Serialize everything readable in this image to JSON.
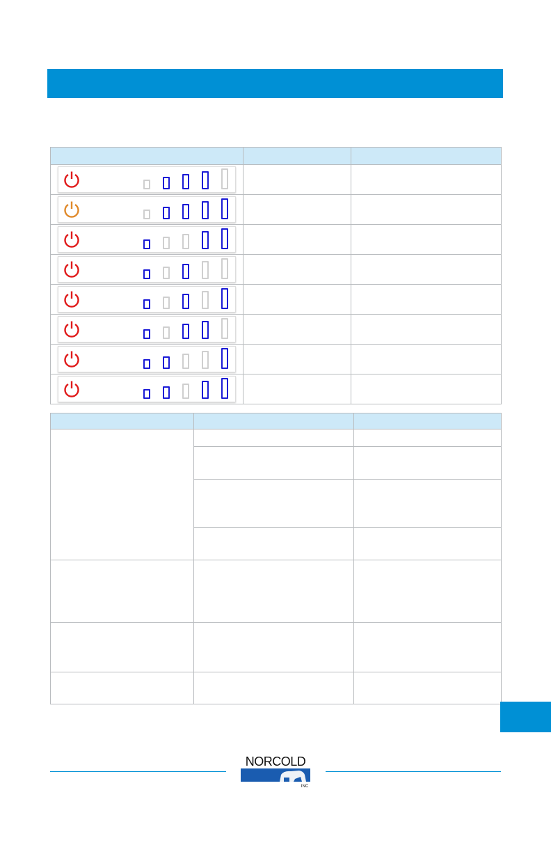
{
  "colors": {
    "accent": "#0090d5",
    "header_row": "#cde9f8",
    "bar_active": "#1a1ad6",
    "bar_inactive": "#cfcfcf",
    "power_red": "#e01a1a",
    "power_orange": "#e0892a"
  },
  "logo": {
    "text": "NORCOLD",
    "sub": "INC"
  },
  "indicator_table": {
    "rows": [
      {
        "power_icon_color": "red",
        "bars": [
          0,
          1,
          1,
          1,
          0
        ]
      },
      {
        "power_icon_color": "orange",
        "bars": [
          0,
          1,
          1,
          1,
          1
        ]
      },
      {
        "power_icon_color": "red",
        "bars": [
          1,
          0,
          0,
          1,
          1
        ]
      },
      {
        "power_icon_color": "red",
        "bars": [
          1,
          0,
          1,
          0,
          0
        ]
      },
      {
        "power_icon_color": "red",
        "bars": [
          1,
          0,
          1,
          0,
          1
        ]
      },
      {
        "power_icon_color": "red",
        "bars": [
          1,
          0,
          1,
          1,
          0
        ]
      },
      {
        "power_icon_color": "red",
        "bars": [
          1,
          1,
          0,
          0,
          1
        ]
      },
      {
        "power_icon_color": "red",
        "bars": [
          1,
          1,
          0,
          1,
          1
        ]
      }
    ]
  }
}
